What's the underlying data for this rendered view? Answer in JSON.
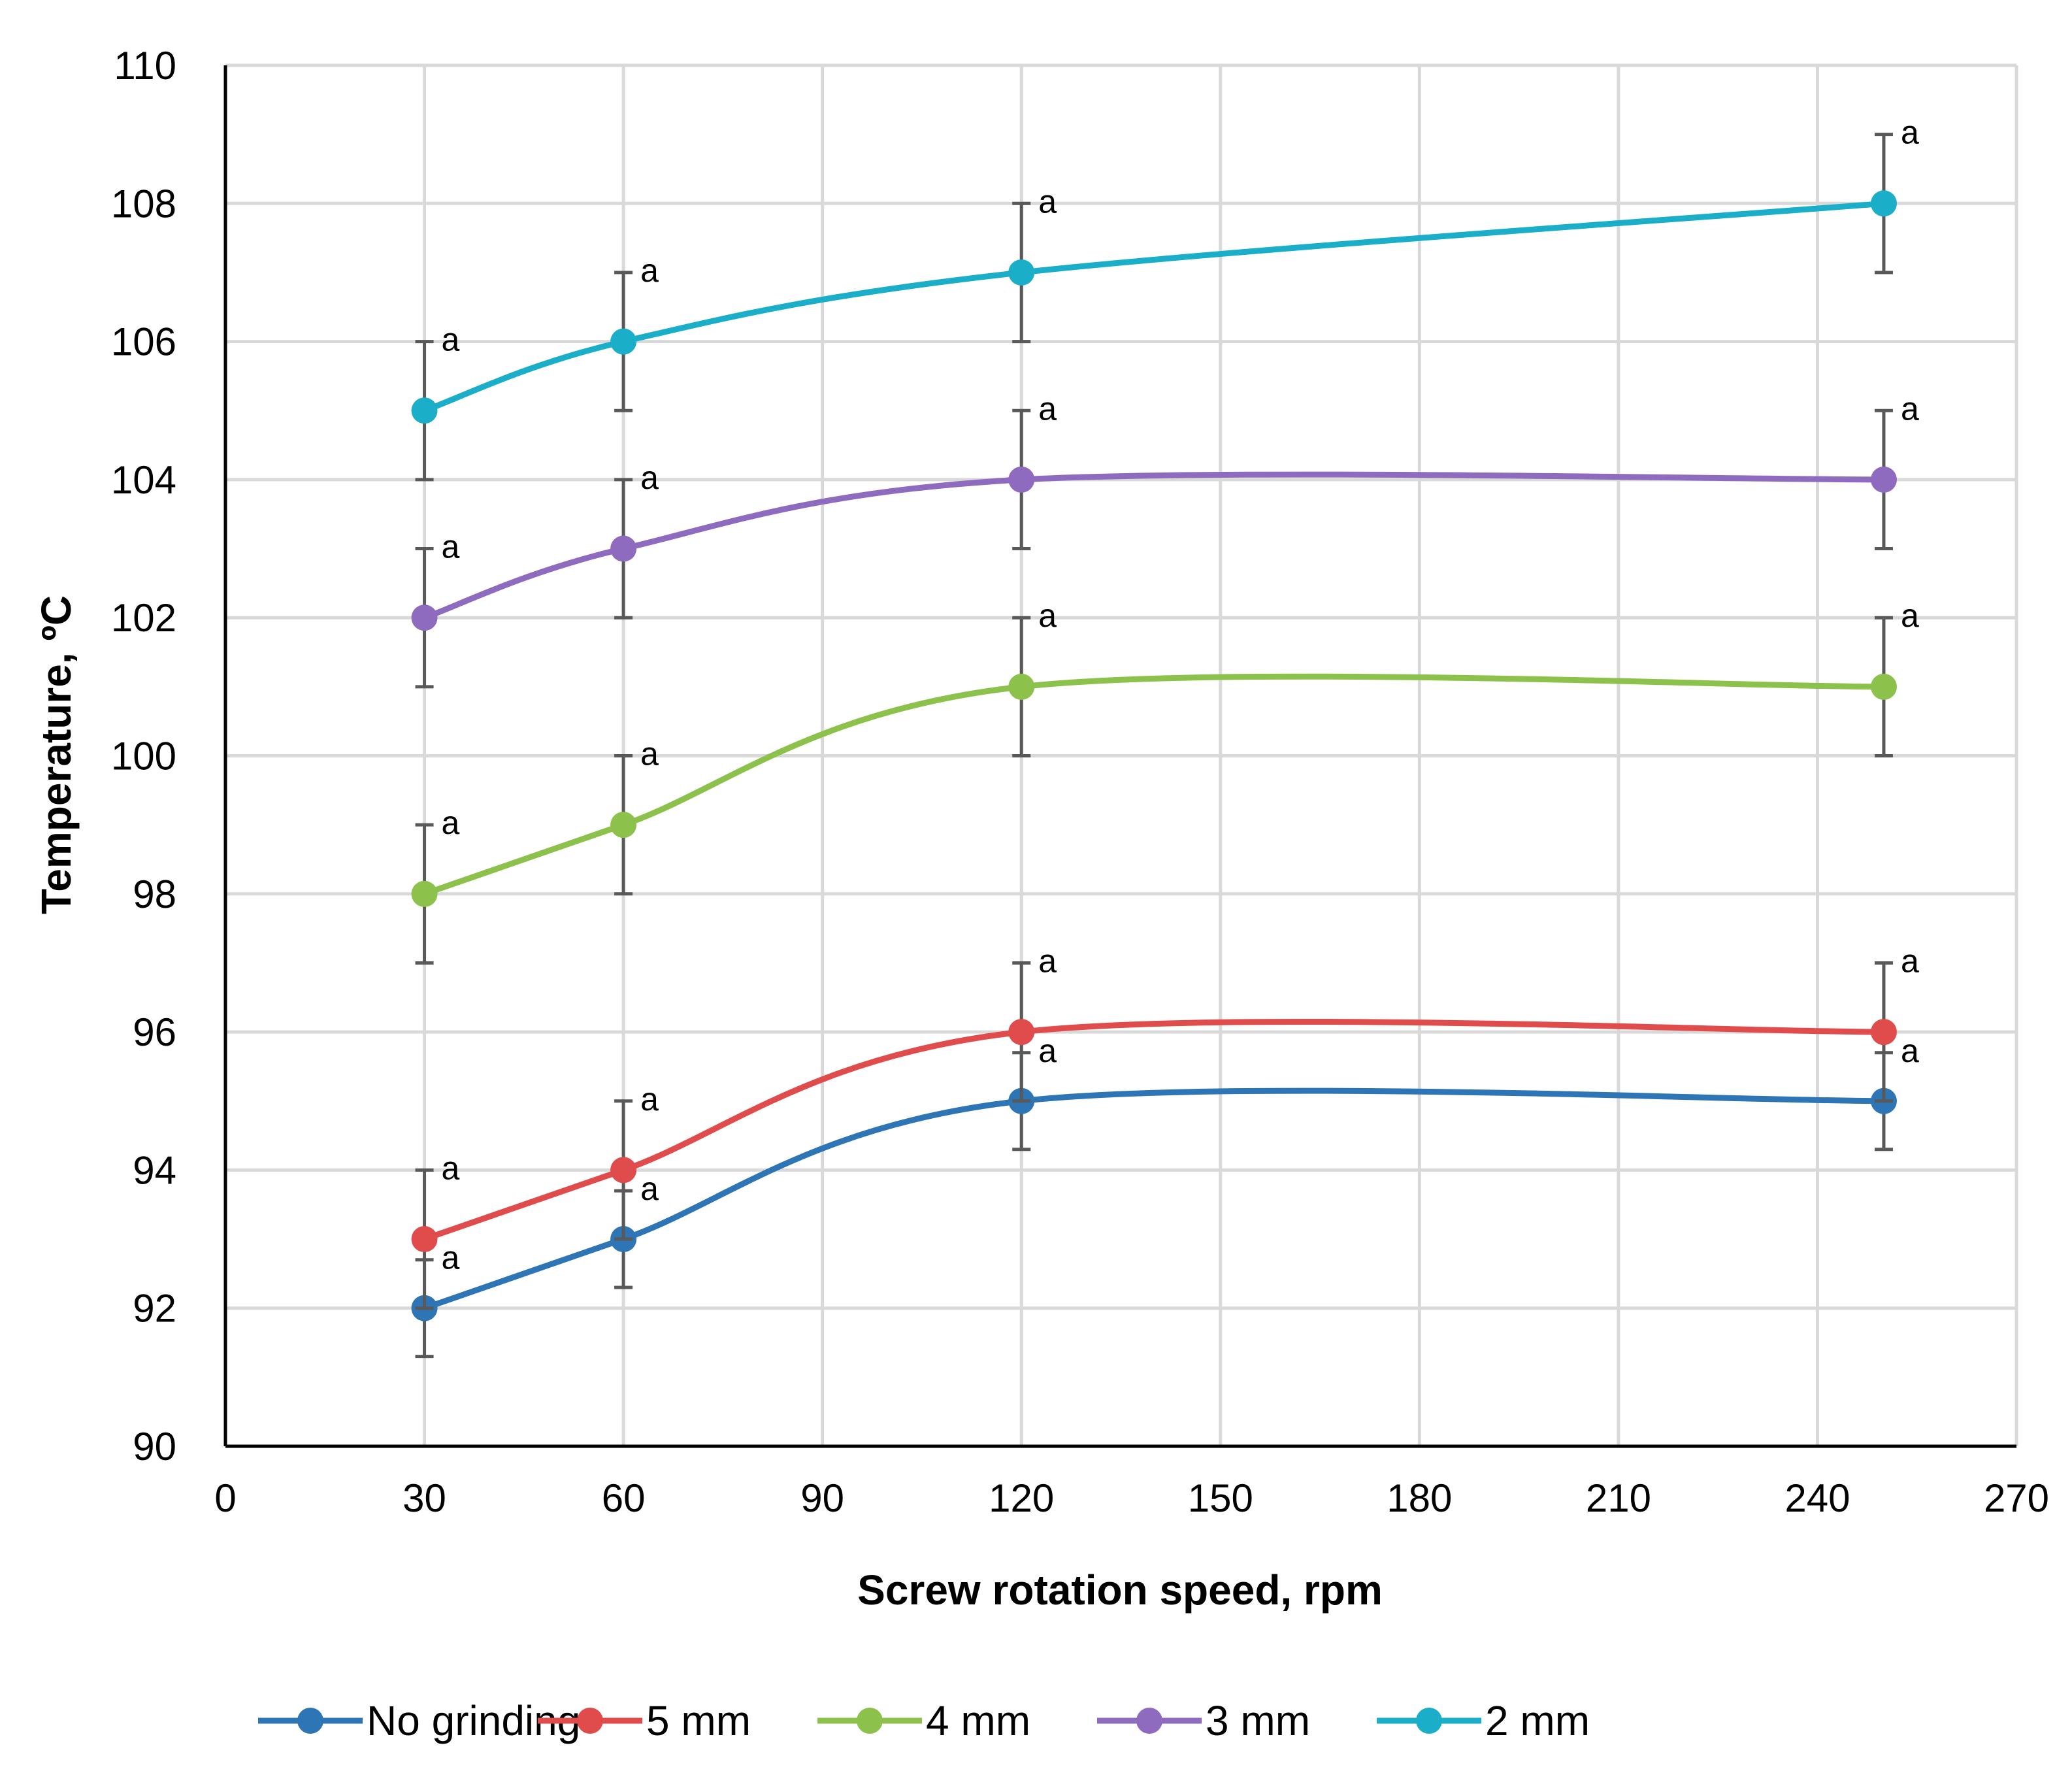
{
  "chart_data": {
    "type": "line",
    "title": "",
    "xlabel": "Screw rotation speed, rpm",
    "ylabel": "Temperature, ºC",
    "xlim": [
      0,
      270
    ],
    "ylim": [
      90,
      110
    ],
    "xticks": [
      0,
      30,
      60,
      90,
      120,
      150,
      180,
      210,
      240,
      270
    ],
    "yticks": [
      90,
      92,
      94,
      96,
      98,
      100,
      102,
      104,
      106,
      108,
      110
    ],
    "grid": true,
    "smooth": true,
    "legend_position": "bottom",
    "x": [
      30,
      60,
      120,
      250
    ],
    "series": [
      {
        "name": "No grinding",
        "color": "#2E75B6",
        "values": [
          92,
          93,
          95,
          95
        ],
        "error": [
          0.7,
          0.7,
          0.7,
          0.7
        ],
        "annotations": [
          "a",
          "a",
          "a",
          "a"
        ]
      },
      {
        "name": "5 mm",
        "color": "#E04B4B",
        "values": [
          93,
          94,
          96,
          96
        ],
        "error": [
          1,
          1,
          1,
          1
        ],
        "annotations": [
          "a",
          "a",
          "a",
          "a"
        ]
      },
      {
        "name": "4 mm",
        "color": "#8CC14C",
        "values": [
          98,
          99,
          101,
          101
        ],
        "error": [
          1,
          1,
          1,
          1
        ],
        "annotations": [
          "a",
          "a",
          "a",
          "a"
        ]
      },
      {
        "name": "3 mm",
        "color": "#8E6BBE",
        "values": [
          102,
          103,
          104,
          104
        ],
        "error": [
          1,
          1,
          1,
          1
        ],
        "annotations": [
          "a",
          "a",
          "a",
          "a"
        ]
      },
      {
        "name": "2 mm",
        "color": "#1AAEC9",
        "values": [
          105,
          106,
          107,
          108
        ],
        "error": [
          1,
          1,
          1,
          1
        ],
        "annotations": [
          "a",
          "a",
          "a",
          "a"
        ]
      }
    ]
  }
}
